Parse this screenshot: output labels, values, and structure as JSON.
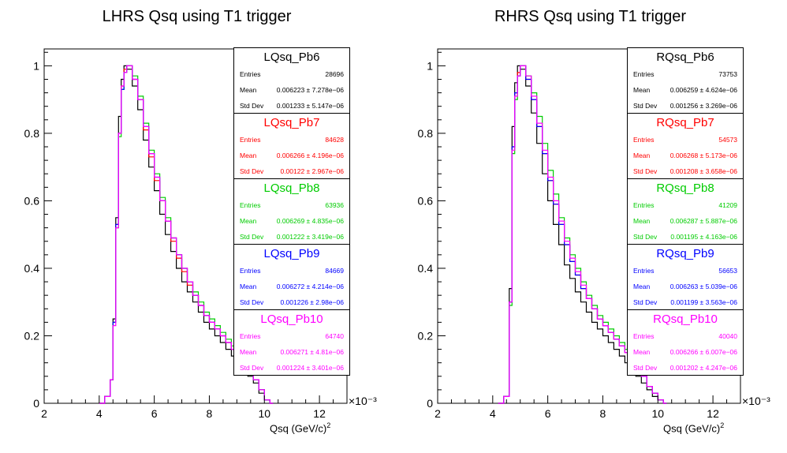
{
  "chart_data": [
    {
      "type": "histogram",
      "title": "LHRS Qsq using T1 trigger",
      "xlabel": "Qsq (GeV/c)",
      "xlabel_sup": "2",
      "x_multiplier": "×10⁻³",
      "xlim": [
        2,
        13
      ],
      "ylim": [
        0,
        1.05
      ],
      "xticks": [
        "2",
        "4",
        "6",
        "8",
        "10",
        "12"
      ],
      "yticks": [
        "0",
        "0.2",
        "0.4",
        "0.6",
        "0.8",
        "1"
      ],
      "stats": [
        {
          "name": "LQsq_Pb6",
          "color": "#000000",
          "entries_label": "Entries",
          "entries": "28696",
          "mean_label": "Mean",
          "mean": "0.006223 ± 7.278e−06",
          "std_label": "Std Dev",
          "std": "0.001233 ± 5.147e−06"
        },
        {
          "name": "LQsq_Pb7",
          "color": "#ff0000",
          "entries_label": "Entries",
          "entries": "84628",
          "mean_label": "Mean",
          "mean": "0.006266 ± 4.196e−06",
          "std_label": "Std Dev",
          "std": "0.00122 ± 2.967e−06"
        },
        {
          "name": "LQsq_Pb8",
          "color": "#00cc00",
          "entries_label": "Entries",
          "entries": "63936",
          "mean_label": "Mean",
          "mean": "0.006269 ± 4.835e−06",
          "std_label": "Std Dev",
          "std": "0.001222 ± 3.419e−06"
        },
        {
          "name": "LQsq_Pb9",
          "color": "#0000ff",
          "entries_label": "Entries",
          "entries": "84669",
          "mean_label": "Mean",
          "mean": "0.006272 ± 4.214e−06",
          "std_label": "Std Dev",
          "std": "0.001226 ± 2.98e−06"
        },
        {
          "name": "LQsq_Pb10",
          "color": "#ff00ff",
          "entries_label": "Entries",
          "entries": "64740",
          "mean_label": "Mean",
          "mean": "0.006271 ± 4.81e−06",
          "std_label": "Std Dev",
          "std": "0.001224 ± 3.401e−06"
        }
      ],
      "series": [
        {
          "name": "LQsq_Pb6",
          "color": "#000000",
          "x": [
            4.0,
            4.2,
            4.4,
            4.5,
            4.6,
            4.7,
            4.8,
            4.9,
            5.0,
            5.2,
            5.4,
            5.6,
            5.8,
            6.0,
            6.2,
            6.4,
            6.6,
            6.8,
            7.0,
            7.2,
            7.4,
            7.6,
            7.8,
            8.0,
            8.2,
            8.4,
            8.6,
            8.8,
            9.0,
            9.2,
            9.4,
            9.6,
            9.8,
            10.0,
            10.2
          ],
          "y": [
            0.0,
            0.02,
            0.07,
            0.25,
            0.55,
            0.85,
            0.96,
            1.0,
            0.99,
            0.94,
            0.87,
            0.78,
            0.7,
            0.63,
            0.56,
            0.5,
            0.45,
            0.4,
            0.36,
            0.33,
            0.3,
            0.27,
            0.24,
            0.22,
            0.2,
            0.18,
            0.16,
            0.14,
            0.12,
            0.1,
            0.08,
            0.06,
            0.03,
            0.01,
            0.0
          ]
        },
        {
          "name": "LQsq_Pb7",
          "color": "#ff0000",
          "x": [
            4.0,
            4.2,
            4.4,
            4.5,
            4.6,
            4.7,
            4.8,
            4.9,
            5.0,
            5.2,
            5.4,
            5.6,
            5.8,
            6.0,
            6.2,
            6.4,
            6.6,
            6.8,
            7.0,
            7.2,
            7.4,
            7.6,
            7.8,
            8.0,
            8.2,
            8.4,
            8.6,
            8.8,
            9.0,
            9.2,
            9.4,
            9.6,
            9.8,
            10.0,
            10.2
          ],
          "y": [
            0.0,
            0.02,
            0.07,
            0.24,
            0.53,
            0.8,
            0.94,
            0.99,
            1.0,
            0.96,
            0.9,
            0.81,
            0.73,
            0.66,
            0.6,
            0.54,
            0.48,
            0.43,
            0.39,
            0.35,
            0.32,
            0.29,
            0.26,
            0.24,
            0.22,
            0.2,
            0.18,
            0.16,
            0.14,
            0.12,
            0.1,
            0.07,
            0.04,
            0.01,
            0.0
          ]
        },
        {
          "name": "LQsq_Pb8",
          "color": "#00cc00",
          "x": [
            4.0,
            4.2,
            4.4,
            4.5,
            4.6,
            4.7,
            4.8,
            4.9,
            5.0,
            5.2,
            5.4,
            5.6,
            5.8,
            6.0,
            6.2,
            6.4,
            6.6,
            6.8,
            7.0,
            7.2,
            7.4,
            7.6,
            7.8,
            8.0,
            8.2,
            8.4,
            8.6,
            8.8,
            9.0,
            9.2,
            9.4,
            9.6,
            9.8,
            10.0,
            10.2
          ],
          "y": [
            0.0,
            0.02,
            0.07,
            0.24,
            0.52,
            0.79,
            0.93,
            0.98,
            1.0,
            0.97,
            0.91,
            0.83,
            0.75,
            0.68,
            0.61,
            0.55,
            0.49,
            0.44,
            0.4,
            0.36,
            0.33,
            0.3,
            0.27,
            0.25,
            0.23,
            0.21,
            0.19,
            0.17,
            0.15,
            0.12,
            0.1,
            0.07,
            0.04,
            0.01,
            0.0
          ]
        },
        {
          "name": "LQsq_Pb9",
          "color": "#0000ff",
          "x": [
            4.0,
            4.2,
            4.4,
            4.5,
            4.6,
            4.7,
            4.8,
            4.9,
            5.0,
            5.2,
            5.4,
            5.6,
            5.8,
            6.0,
            6.2,
            6.4,
            6.6,
            6.8,
            7.0,
            7.2,
            7.4,
            7.6,
            7.8,
            8.0,
            8.2,
            8.4,
            8.6,
            8.8,
            9.0,
            9.2,
            9.4,
            9.6,
            9.8,
            10.0,
            10.2
          ],
          "y": [
            0.0,
            0.02,
            0.07,
            0.24,
            0.53,
            0.8,
            0.93,
            0.98,
            1.0,
            0.96,
            0.9,
            0.82,
            0.74,
            0.67,
            0.6,
            0.54,
            0.49,
            0.44,
            0.4,
            0.36,
            0.32,
            0.29,
            0.26,
            0.24,
            0.22,
            0.2,
            0.18,
            0.16,
            0.14,
            0.12,
            0.1,
            0.07,
            0.04,
            0.01,
            0.0
          ]
        },
        {
          "name": "LQsq_Pb10",
          "color": "#ff00ff",
          "x": [
            4.0,
            4.2,
            4.4,
            4.5,
            4.6,
            4.7,
            4.8,
            4.9,
            5.0,
            5.2,
            5.4,
            5.6,
            5.8,
            6.0,
            6.2,
            6.4,
            6.6,
            6.8,
            7.0,
            7.2,
            7.4,
            7.6,
            7.8,
            8.0,
            8.2,
            8.4,
            8.6,
            8.8,
            9.0,
            9.2,
            9.4,
            9.6,
            9.8,
            10.0,
            10.2
          ],
          "y": [
            0.0,
            0.02,
            0.07,
            0.23,
            0.52,
            0.8,
            0.94,
            0.98,
            1.0,
            0.96,
            0.9,
            0.82,
            0.74,
            0.67,
            0.6,
            0.54,
            0.49,
            0.44,
            0.4,
            0.36,
            0.32,
            0.29,
            0.26,
            0.24,
            0.22,
            0.2,
            0.18,
            0.16,
            0.14,
            0.12,
            0.1,
            0.07,
            0.04,
            0.01,
            0.0
          ]
        }
      ]
    },
    {
      "type": "histogram",
      "title": "RHRS Qsq using T1 trigger",
      "xlabel": "Qsq (GeV/c)",
      "xlabel_sup": "2",
      "x_multiplier": "×10⁻³",
      "xlim": [
        2,
        13
      ],
      "ylim": [
        0,
        1.05
      ],
      "xticks": [
        "2",
        "4",
        "6",
        "8",
        "10",
        "12"
      ],
      "yticks": [
        "0",
        "0.2",
        "0.4",
        "0.6",
        "0.8",
        "1"
      ],
      "stats": [
        {
          "name": "RQsq_Pb6",
          "color": "#000000",
          "entries_label": "Entries",
          "entries": "73753",
          "mean_label": "Mean",
          "mean": "0.006259 ± 4.624e−06",
          "std_label": "Std Dev",
          "std": "0.001256 ± 3.269e−06"
        },
        {
          "name": "RQsq_Pb7",
          "color": "#ff0000",
          "entries_label": "Entries",
          "entries": "54573",
          "mean_label": "Mean",
          "mean": "0.006268 ± 5.173e−06",
          "std_label": "Std Dev",
          "std": "0.001208 ± 3.658e−06"
        },
        {
          "name": "RQsq_Pb8",
          "color": "#00cc00",
          "entries_label": "Entries",
          "entries": "41209",
          "mean_label": "Mean",
          "mean": "0.006287 ± 5.887e−06",
          "std_label": "Std Dev",
          "std": "0.001195 ± 4.163e−06"
        },
        {
          "name": "RQsq_Pb9",
          "color": "#0000ff",
          "entries_label": "Entries",
          "entries": "56653",
          "mean_label": "Mean",
          "mean": "0.006263 ± 5.039e−06",
          "std_label": "Std Dev",
          "std": "0.001199 ± 3.563e−06"
        },
        {
          "name": "RQsq_Pb10",
          "color": "#ff00ff",
          "entries_label": "Entries",
          "entries": "40040",
          "mean_label": "Mean",
          "mean": "0.006266 ± 6.007e−06",
          "std_label": "Std Dev",
          "std": "0.001202 ± 4.247e−06"
        }
      ],
      "series": [
        {
          "name": "RQsq_Pb6",
          "color": "#000000",
          "x": [
            4.2,
            4.4,
            4.6,
            4.7,
            4.8,
            4.9,
            5.0,
            5.2,
            5.4,
            5.6,
            5.8,
            6.0,
            6.2,
            6.4,
            6.6,
            6.8,
            7.0,
            7.2,
            7.4,
            7.6,
            7.8,
            8.0,
            8.2,
            8.4,
            8.6,
            8.8,
            9.0,
            9.2,
            9.4,
            9.6,
            9.8,
            10.0,
            10.2
          ],
          "y": [
            0.0,
            0.02,
            0.34,
            0.82,
            0.95,
            1.0,
            0.99,
            0.94,
            0.86,
            0.77,
            0.68,
            0.6,
            0.53,
            0.47,
            0.41,
            0.37,
            0.33,
            0.3,
            0.27,
            0.24,
            0.22,
            0.2,
            0.18,
            0.16,
            0.14,
            0.12,
            0.1,
            0.08,
            0.06,
            0.04,
            0.02,
            0.01,
            0.0
          ]
        },
        {
          "name": "RQsq_Pb7",
          "color": "#ff0000",
          "x": [
            4.2,
            4.4,
            4.6,
            4.7,
            4.8,
            4.9,
            5.0,
            5.2,
            5.4,
            5.6,
            5.8,
            6.0,
            6.2,
            6.4,
            6.6,
            6.8,
            7.0,
            7.2,
            7.4,
            7.6,
            7.8,
            8.0,
            8.2,
            8.4,
            8.6,
            8.8,
            9.0,
            9.2,
            9.4,
            9.6,
            9.8,
            10.0,
            10.2
          ],
          "y": [
            0.0,
            0.02,
            0.3,
            0.76,
            0.92,
            0.98,
            1.0,
            0.96,
            0.9,
            0.82,
            0.74,
            0.66,
            0.59,
            0.53,
            0.47,
            0.42,
            0.38,
            0.34,
            0.31,
            0.28,
            0.25,
            0.23,
            0.21,
            0.19,
            0.17,
            0.15,
            0.13,
            0.1,
            0.08,
            0.05,
            0.03,
            0.01,
            0.0
          ]
        },
        {
          "name": "RQsq_Pb8",
          "color": "#00cc00",
          "x": [
            4.2,
            4.4,
            4.6,
            4.7,
            4.8,
            4.9,
            5.0,
            5.2,
            5.4,
            5.6,
            5.8,
            6.0,
            6.2,
            6.4,
            6.6,
            6.8,
            7.0,
            7.2,
            7.4,
            7.6,
            7.8,
            8.0,
            8.2,
            8.4,
            8.6,
            8.8,
            9.0,
            9.2,
            9.4,
            9.6,
            9.8,
            10.0,
            10.2
          ],
          "y": [
            0.0,
            0.02,
            0.29,
            0.74,
            0.9,
            0.97,
            1.0,
            0.97,
            0.92,
            0.85,
            0.77,
            0.69,
            0.62,
            0.55,
            0.49,
            0.44,
            0.4,
            0.36,
            0.32,
            0.29,
            0.26,
            0.24,
            0.22,
            0.2,
            0.18,
            0.16,
            0.14,
            0.11,
            0.08,
            0.05,
            0.03,
            0.01,
            0.0
          ]
        },
        {
          "name": "RQsq_Pb9",
          "color": "#0000ff",
          "x": [
            4.2,
            4.4,
            4.6,
            4.7,
            4.8,
            4.9,
            5.0,
            5.2,
            5.4,
            5.6,
            5.8,
            6.0,
            6.2,
            6.4,
            6.6,
            6.8,
            7.0,
            7.2,
            7.4,
            7.6,
            7.8,
            8.0,
            8.2,
            8.4,
            8.6,
            8.8,
            9.0,
            9.2,
            9.4,
            9.6,
            9.8,
            10.0,
            10.2
          ],
          "y": [
            0.0,
            0.02,
            0.3,
            0.76,
            0.92,
            0.97,
            1.0,
            0.96,
            0.9,
            0.82,
            0.74,
            0.66,
            0.59,
            0.53,
            0.47,
            0.42,
            0.38,
            0.34,
            0.31,
            0.28,
            0.25,
            0.23,
            0.21,
            0.19,
            0.17,
            0.15,
            0.13,
            0.1,
            0.08,
            0.05,
            0.03,
            0.01,
            0.0
          ]
        },
        {
          "name": "RQsq_Pb10",
          "color": "#ff00ff",
          "x": [
            4.2,
            4.4,
            4.6,
            4.7,
            4.8,
            4.9,
            5.0,
            5.2,
            5.4,
            5.6,
            5.8,
            6.0,
            6.2,
            6.4,
            6.6,
            6.8,
            7.0,
            7.2,
            7.4,
            7.6,
            7.8,
            8.0,
            8.2,
            8.4,
            8.6,
            8.8,
            9.0,
            9.2,
            9.4,
            9.6,
            9.8,
            10.0,
            10.2
          ],
          "y": [
            0.0,
            0.02,
            0.3,
            0.75,
            0.91,
            0.97,
            1.0,
            0.97,
            0.91,
            0.83,
            0.75,
            0.67,
            0.6,
            0.54,
            0.48,
            0.43,
            0.39,
            0.35,
            0.31,
            0.28,
            0.25,
            0.23,
            0.21,
            0.19,
            0.17,
            0.15,
            0.13,
            0.1,
            0.08,
            0.05,
            0.03,
            0.01,
            0.0
          ]
        }
      ]
    }
  ]
}
